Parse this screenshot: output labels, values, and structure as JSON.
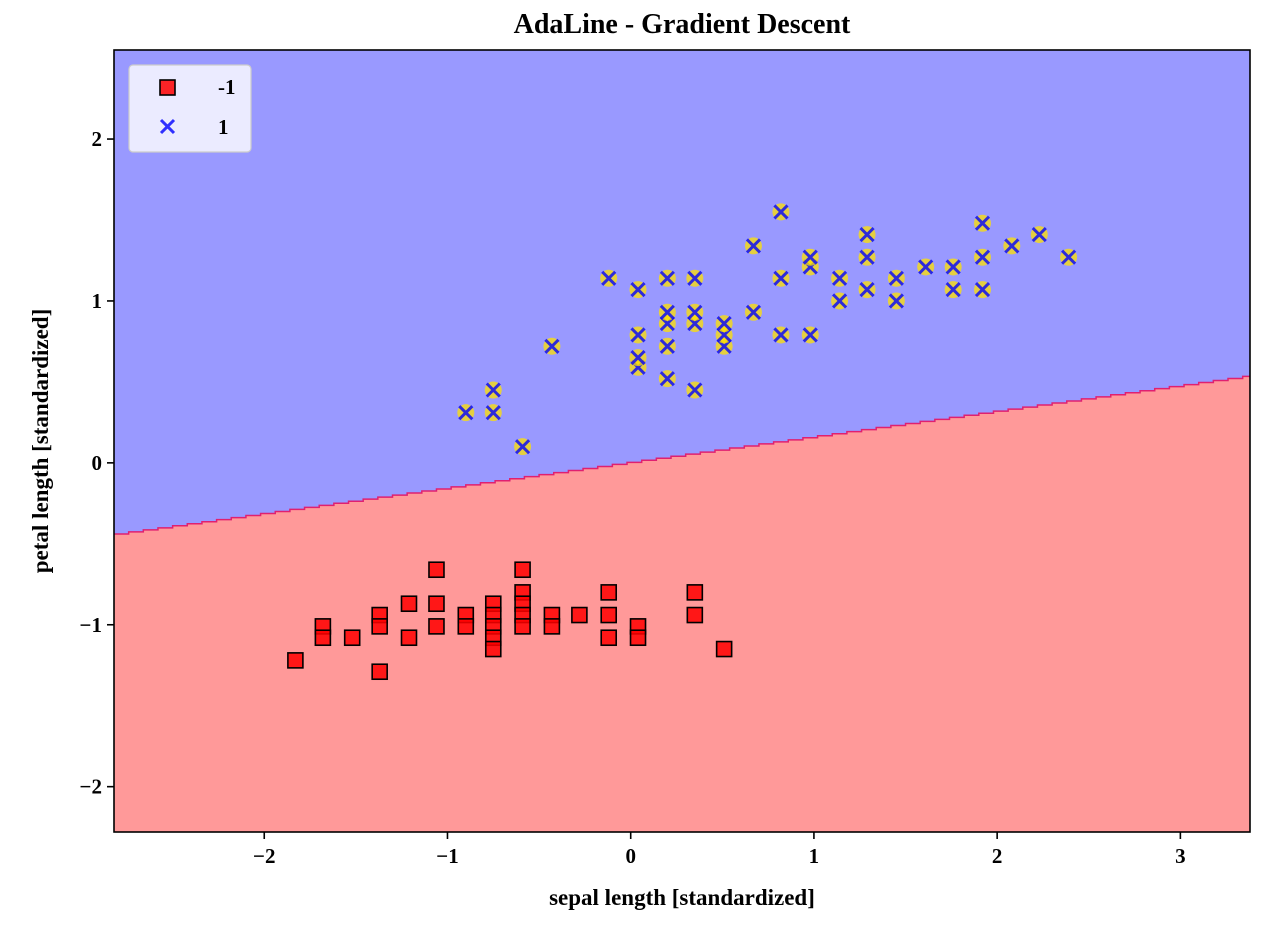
{
  "chart_data": {
    "type": "scatter",
    "title": "AdaLine - Gradient Descent",
    "xlabel": "sepal length [standardized]",
    "ylabel": "petal length [standardized]",
    "xlim": [
      -2.82,
      3.38
    ],
    "ylim": [
      -2.28,
      2.55
    ],
    "xticks": [
      -2,
      -1,
      0,
      1,
      2,
      3
    ],
    "yticks": [
      -2,
      -1,
      0,
      1,
      2
    ],
    "grid": false,
    "legend_position": "top-left",
    "decision_regions": {
      "boundary_line": {
        "slope": 0.158,
        "intercept": 0.0
      },
      "below_class": "-1",
      "above_class": "1",
      "below_color": "#ff9999",
      "above_color": "#9999ff",
      "edge_color": "#e02070"
    },
    "series": [
      {
        "name": "-1",
        "marker": "square",
        "color": "#ff0000",
        "points": [
          [
            -1.83,
            -1.22
          ],
          [
            -1.68,
            -1.01
          ],
          [
            -1.68,
            -1.08
          ],
          [
            -1.52,
            -1.08
          ],
          [
            -1.37,
            -0.94
          ],
          [
            -1.37,
            -1.01
          ],
          [
            -1.37,
            -1.29
          ],
          [
            -1.21,
            -0.87
          ],
          [
            -1.21,
            -1.08
          ],
          [
            -1.06,
            -0.66
          ],
          [
            -1.06,
            -0.87
          ],
          [
            -1.06,
            -1.01
          ],
          [
            -0.9,
            -0.94
          ],
          [
            -0.9,
            -1.01
          ],
          [
            -0.75,
            -0.87
          ],
          [
            -0.75,
            -0.94
          ],
          [
            -0.75,
            -1.01
          ],
          [
            -0.75,
            -1.08
          ],
          [
            -0.75,
            -1.15
          ],
          [
            -0.59,
            -0.66
          ],
          [
            -0.59,
            -0.8
          ],
          [
            -0.59,
            -0.87
          ],
          [
            -0.59,
            -0.94
          ],
          [
            -0.59,
            -1.01
          ],
          [
            -0.43,
            -0.94
          ],
          [
            -0.43,
            -1.01
          ],
          [
            -0.28,
            -0.94
          ],
          [
            -0.12,
            -0.8
          ],
          [
            -0.12,
            -0.94
          ],
          [
            -0.12,
            -1.08
          ],
          [
            0.04,
            -1.01
          ],
          [
            0.04,
            -1.08
          ],
          [
            0.35,
            -0.8
          ],
          [
            0.35,
            -0.94
          ],
          [
            0.51,
            -1.15
          ]
        ]
      },
      {
        "name": "1",
        "marker": "x",
        "color": "#0000ff",
        "points": [
          [
            -0.9,
            0.31
          ],
          [
            -0.75,
            0.31
          ],
          [
            -0.75,
            0.45
          ],
          [
            -0.59,
            0.1
          ],
          [
            -0.43,
            0.72
          ],
          [
            -0.12,
            1.14
          ],
          [
            0.04,
            0.59
          ],
          [
            0.04,
            0.65
          ],
          [
            0.04,
            0.79
          ],
          [
            0.04,
            1.07
          ],
          [
            0.2,
            0.52
          ],
          [
            0.2,
            0.72
          ],
          [
            0.2,
            0.86
          ],
          [
            0.2,
            0.93
          ],
          [
            0.2,
            1.14
          ],
          [
            0.35,
            0.45
          ],
          [
            0.35,
            0.86
          ],
          [
            0.35,
            0.93
          ],
          [
            0.35,
            1.14
          ],
          [
            0.51,
            0.72
          ],
          [
            0.51,
            0.79
          ],
          [
            0.51,
            0.86
          ],
          [
            0.67,
            0.93
          ],
          [
            0.67,
            1.34
          ],
          [
            0.82,
            0.79
          ],
          [
            0.82,
            1.14
          ],
          [
            0.82,
            1.55
          ],
          [
            0.98,
            0.79
          ],
          [
            0.98,
            1.21
          ],
          [
            0.98,
            1.27
          ],
          [
            1.14,
            1.0
          ],
          [
            1.14,
            1.14
          ],
          [
            1.29,
            1.07
          ],
          [
            1.29,
            1.27
          ],
          [
            1.29,
            1.41
          ],
          [
            1.45,
            1.0
          ],
          [
            1.45,
            1.14
          ],
          [
            1.61,
            1.21
          ],
          [
            1.76,
            1.07
          ],
          [
            1.76,
            1.21
          ],
          [
            1.92,
            1.07
          ],
          [
            1.92,
            1.27
          ],
          [
            1.92,
            1.48
          ],
          [
            2.08,
            1.34
          ],
          [
            2.23,
            1.41
          ],
          [
            2.39,
            1.27
          ]
        ]
      }
    ]
  }
}
